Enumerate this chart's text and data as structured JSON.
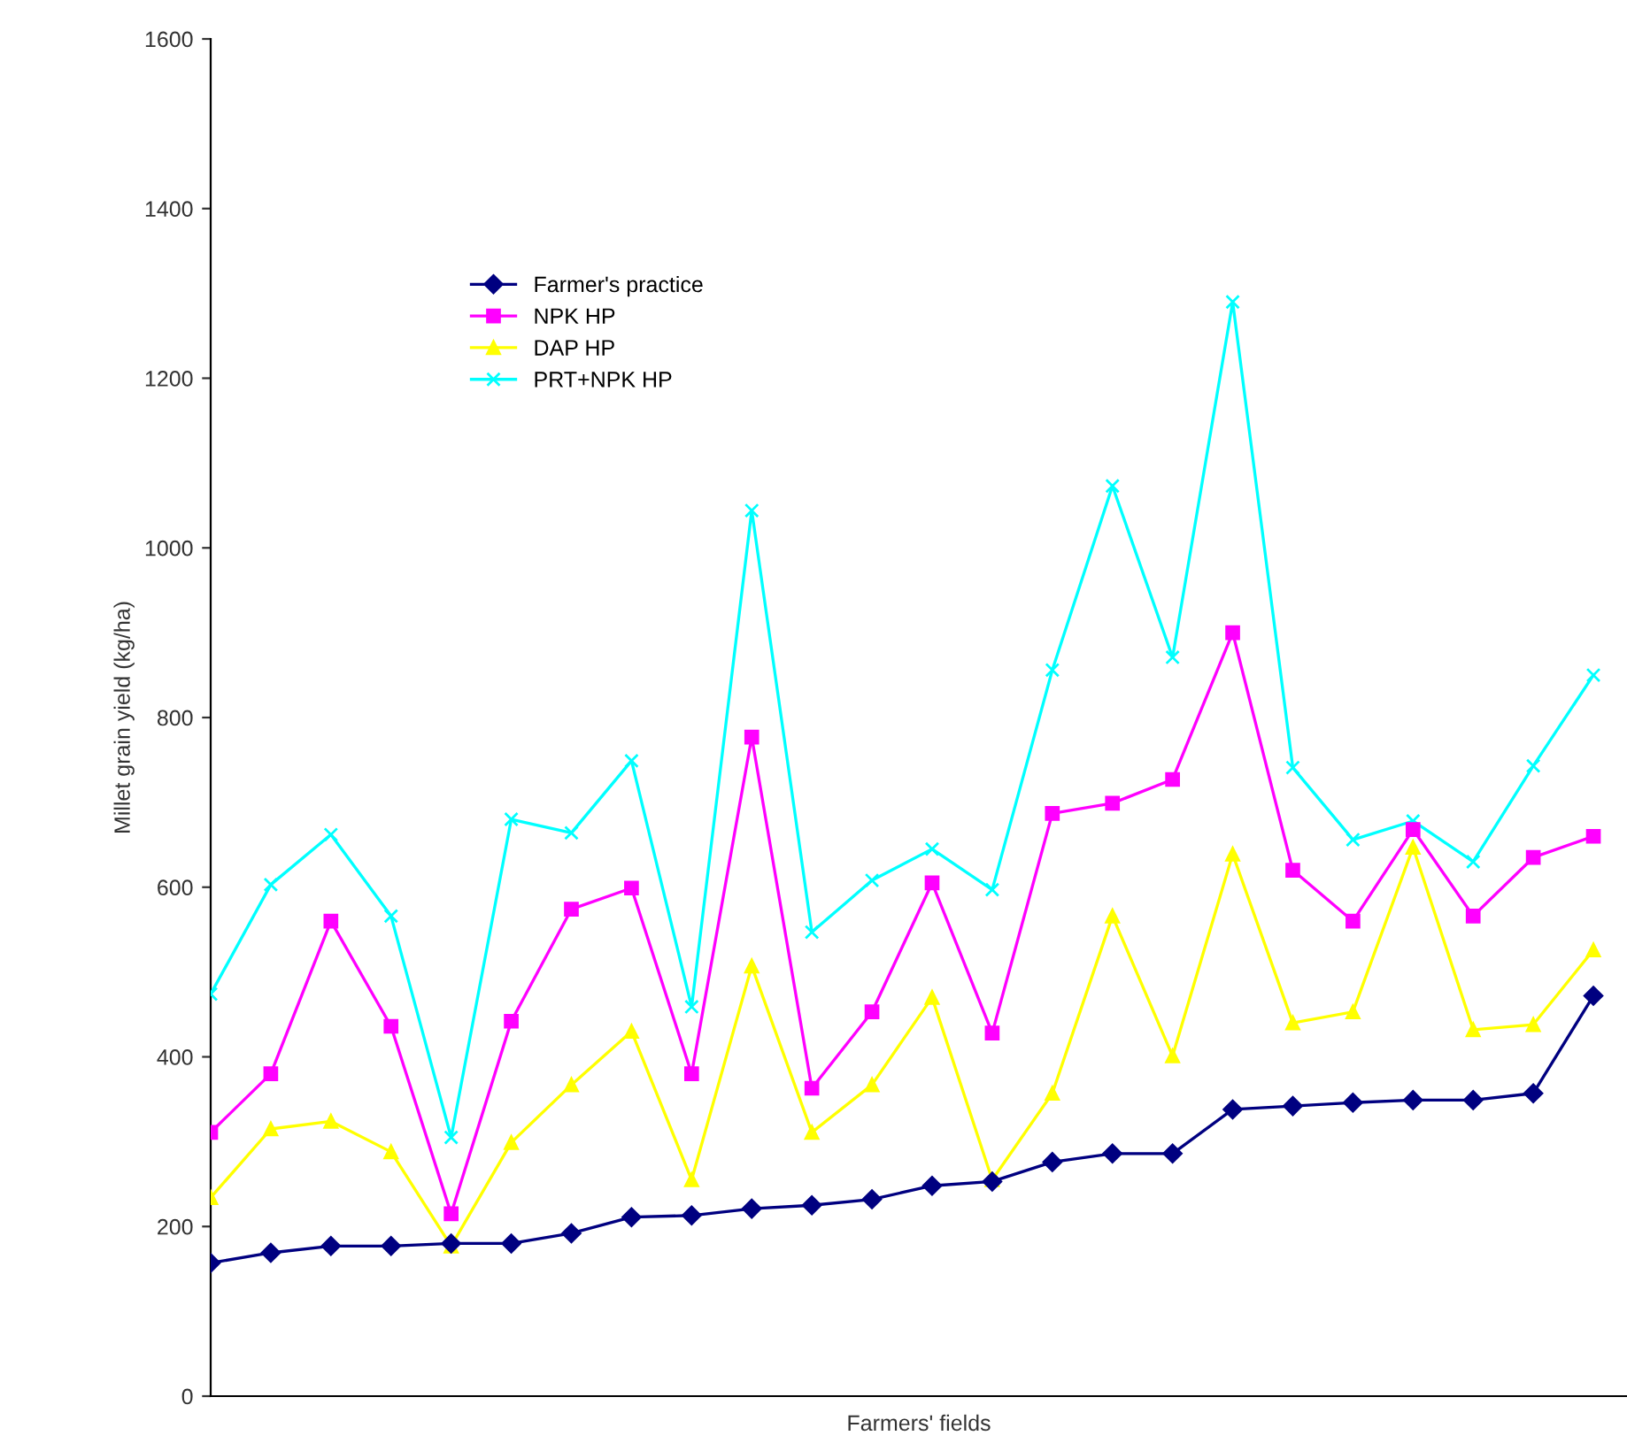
{
  "chart_data": {
    "type": "line",
    "xlabel": "Farmers' fields",
    "ylabel": "Millet grain yield (kg/ha)",
    "categories": [
      null,
      null,
      null,
      null,
      null,
      null,
      null,
      null,
      null,
      null,
      null,
      null,
      null,
      null,
      null,
      null,
      null,
      null,
      null,
      null,
      null,
      null,
      null,
      null
    ],
    "series": [
      {
        "name": "Farmer's practice",
        "color": "#000080",
        "marker": "diamond",
        "values": [
          157,
          169,
          177,
          177,
          180,
          180,
          192,
          211,
          213,
          221,
          225,
          232,
          248,
          253,
          276,
          286,
          286,
          338,
          342,
          346,
          349,
          349,
          357,
          472
        ]
      },
      {
        "name": "NPK HP",
        "color": "#ff00ff",
        "marker": "square",
        "values": [
          311,
          380,
          560,
          436,
          215,
          442,
          574,
          599,
          380,
          777,
          363,
          453,
          605,
          428,
          687,
          699,
          727,
          900,
          620,
          560,
          668,
          566,
          635,
          660
        ]
      },
      {
        "name": "DAP HP",
        "color": "#ffff00",
        "marker": "triangle",
        "values": [
          234,
          315,
          324,
          288,
          177,
          299,
          367,
          430,
          255,
          507,
          311,
          367,
          470,
          255,
          357,
          566,
          401,
          639,
          440,
          453,
          647,
          432,
          438,
          526
        ]
      },
      {
        "name": "PRT+NPK HP",
        "color": "#00ffff",
        "marker": "cross",
        "values": [
          474,
          603,
          662,
          566,
          305,
          680,
          664,
          749,
          459,
          1044,
          547,
          608,
          645,
          597,
          856,
          1073,
          871,
          1290,
          741,
          656,
          678,
          630,
          743,
          850
        ]
      }
    ],
    "ylim": [
      0,
      1600
    ],
    "yticks": [
      0,
      200,
      400,
      600,
      800,
      1000,
      1200,
      1400,
      1600
    ],
    "grid": false,
    "legend": "top left"
  }
}
